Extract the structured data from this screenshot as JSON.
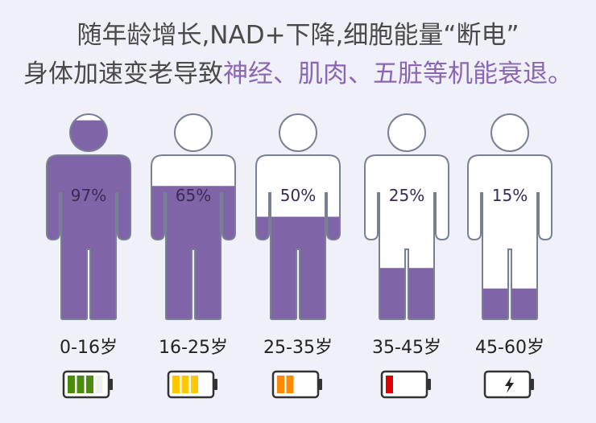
{
  "headline": {
    "line1": "随年龄增长,NAD+下降,细胞能量“断电”",
    "line2_plain": "身体加速变老导致",
    "line2_highlight": "神经、肌肉、五脏等机能衰退。"
  },
  "colors": {
    "fill": "#7f64a8",
    "outline": "#7a8093",
    "highlight": "#8b67b3"
  },
  "figures": [
    {
      "age": "0-16岁",
      "percent_label": "97%",
      "level": 97,
      "battery": {
        "bars": 3,
        "color": "#4a8a0c",
        "empty_bars": 1
      }
    },
    {
      "age": "16-25岁",
      "percent_label": "65%",
      "level": 65,
      "battery": {
        "bars": 3,
        "color": "#ffc800"
      }
    },
    {
      "age": "25-35岁",
      "percent_label": "50%",
      "level": 50,
      "battery": {
        "bars": 2,
        "color": "#ff8a00"
      }
    },
    {
      "age": "35-45岁",
      "percent_label": "25%",
      "level": 25,
      "battery": {
        "bars": 1,
        "color": "#e00000"
      }
    },
    {
      "age": "45-60岁",
      "percent_label": "15%",
      "level": 15,
      "battery": {
        "bars": 0,
        "icon": "lightning-icon"
      }
    }
  ]
}
